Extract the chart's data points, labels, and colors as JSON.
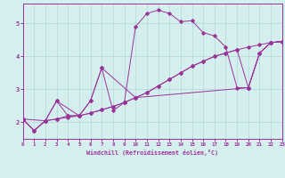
{
  "xlabel": "Windchill (Refroidissement éolien,°C)",
  "xlim": [
    0,
    23
  ],
  "ylim": [
    1.5,
    5.6
  ],
  "yticks": [
    2,
    3,
    4,
    5
  ],
  "xticks": [
    0,
    1,
    2,
    3,
    4,
    5,
    6,
    7,
    8,
    9,
    10,
    11,
    12,
    13,
    14,
    15,
    16,
    17,
    18,
    19,
    20,
    21,
    22,
    23
  ],
  "bg_color": "#d5efef",
  "grid_color": "#b0d8d8",
  "line_color": "#993399",
  "line1_x": [
    0,
    1,
    2,
    3,
    4,
    5,
    6,
    7,
    8,
    9,
    10,
    11,
    12,
    13,
    14,
    15,
    16,
    17,
    18,
    19,
    20,
    21,
    22,
    23
  ],
  "line1_y": [
    2.1,
    1.75,
    2.05,
    2.1,
    2.15,
    2.2,
    2.28,
    2.38,
    2.48,
    2.6,
    2.75,
    2.9,
    3.1,
    3.3,
    3.5,
    3.7,
    3.85,
    4.0,
    4.1,
    4.2,
    4.28,
    4.35,
    4.42,
    4.45
  ],
  "line2_x": [
    0,
    1,
    2,
    3,
    4,
    5,
    6,
    7,
    8,
    9,
    10,
    11,
    12,
    13,
    14,
    15,
    16,
    17,
    18,
    19,
    20,
    21,
    22,
    23
  ],
  "line2_y": [
    2.1,
    1.75,
    2.05,
    2.1,
    2.2,
    2.2,
    2.28,
    2.38,
    2.48,
    2.6,
    2.75,
    2.9,
    3.1,
    3.3,
    3.5,
    3.7,
    3.85,
    4.0,
    4.1,
    4.2,
    3.05,
    4.1,
    4.42,
    4.45
  ],
  "line3_x": [
    0,
    1,
    2,
    3,
    4,
    5,
    6,
    7,
    8,
    9,
    10,
    11,
    12,
    13,
    14,
    15,
    16,
    17,
    18,
    19,
    20,
    21,
    22,
    23
  ],
  "line3_y": [
    2.1,
    1.75,
    2.05,
    2.65,
    2.2,
    2.2,
    2.65,
    3.65,
    2.35,
    2.6,
    4.9,
    5.3,
    5.4,
    5.3,
    5.05,
    5.08,
    4.72,
    4.62,
    4.28,
    3.05,
    3.05,
    4.1,
    4.42,
    4.45
  ],
  "line4_x": [
    0,
    2,
    3,
    5,
    6,
    7,
    10,
    20,
    21,
    22,
    23
  ],
  "line4_y": [
    2.1,
    2.05,
    2.65,
    2.2,
    2.65,
    3.65,
    2.75,
    3.05,
    4.1,
    4.42,
    4.45
  ]
}
